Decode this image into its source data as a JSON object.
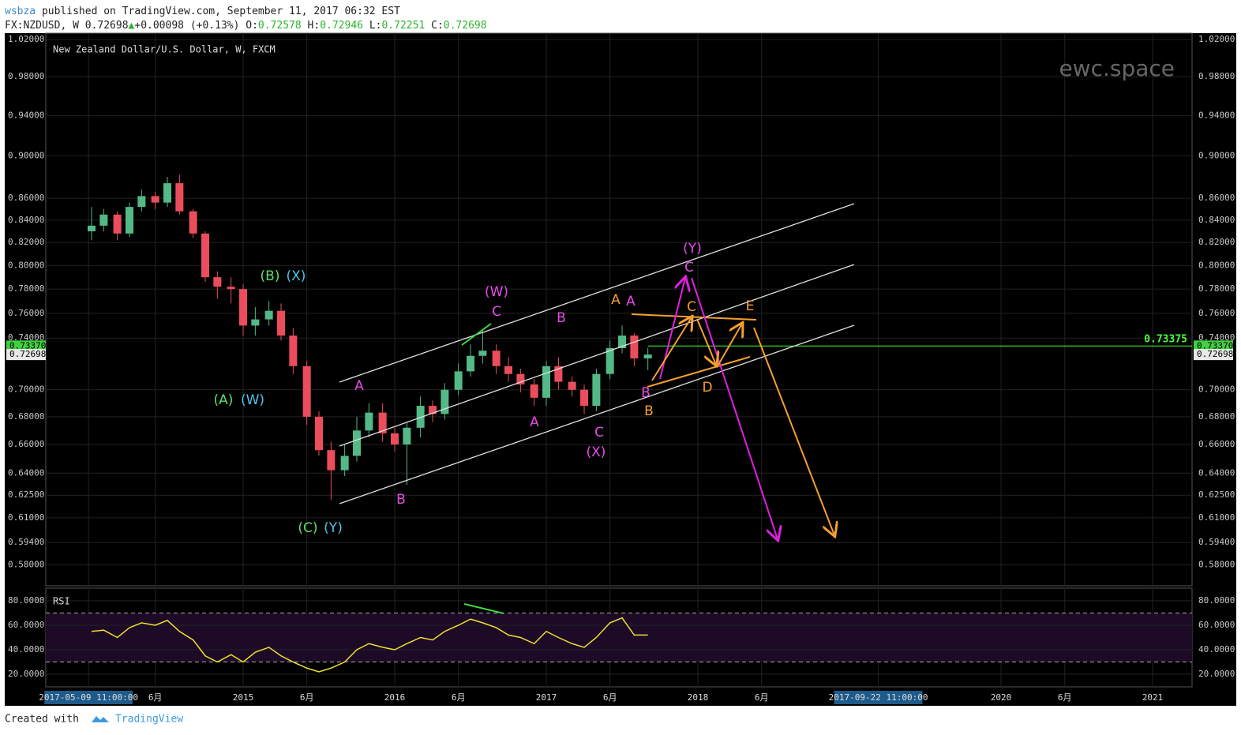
{
  "header": {
    "author": "wsbza",
    "published": "published on TradingView.com, September 11, 2017 06:32 EST",
    "symbol": "FX:NZDUSD, W",
    "last": "0.72698",
    "change": "+0.00098 (+0.13%)",
    "open_label": "O:",
    "open": "0.72578",
    "high_label": "H:",
    "high": "0.72946",
    "low_label": "L:",
    "low": "0.72251",
    "close_label": "C:",
    "close": "0.72698"
  },
  "chart_data": [
    {
      "type": "candlestick",
      "title": "New Zealand Dollar/U.S. Dollar, W, FXCM",
      "watermark": "ewc.space",
      "x": [
        2014.0,
        2014.08,
        2014.17,
        2014.25,
        2014.33,
        2014.42,
        2014.5,
        2014.58,
        2014.67,
        2014.75,
        2014.83,
        2014.92,
        2015.0,
        2015.08,
        2015.17,
        2015.25,
        2015.33,
        2015.42,
        2015.5,
        2015.58,
        2015.67,
        2015.75,
        2015.83,
        2015.92,
        2016.0,
        2016.08,
        2016.17,
        2016.25,
        2016.33,
        2016.42,
        2016.5,
        2016.58,
        2016.67,
        2016.75,
        2016.83,
        2016.92,
        2017.0,
        2017.08,
        2017.17,
        2017.25,
        2017.33,
        2017.42,
        2017.5,
        2017.58,
        2017.67
      ],
      "open": [
        0.83,
        0.835,
        0.845,
        0.828,
        0.852,
        0.862,
        0.856,
        0.874,
        0.848,
        0.828,
        0.79,
        0.782,
        0.78,
        0.75,
        0.755,
        0.762,
        0.742,
        0.718,
        0.68,
        0.656,
        0.642,
        0.652,
        0.67,
        0.683,
        0.668,
        0.66,
        0.672,
        0.688,
        0.682,
        0.7,
        0.714,
        0.726,
        0.73,
        0.718,
        0.712,
        0.704,
        0.694,
        0.718,
        0.706,
        0.7,
        0.688,
        0.712,
        0.732,
        0.742,
        0.724
      ],
      "high": [
        0.852,
        0.85,
        0.848,
        0.856,
        0.868,
        0.866,
        0.88,
        0.882,
        0.85,
        0.83,
        0.795,
        0.79,
        0.784,
        0.765,
        0.77,
        0.768,
        0.748,
        0.722,
        0.684,
        0.662,
        0.66,
        0.68,
        0.69,
        0.69,
        0.672,
        0.676,
        0.695,
        0.692,
        0.705,
        0.72,
        0.735,
        0.746,
        0.735,
        0.725,
        0.716,
        0.708,
        0.722,
        0.725,
        0.71,
        0.704,
        0.716,
        0.738,
        0.75,
        0.744,
        0.732
      ],
      "low": [
        0.822,
        0.83,
        0.822,
        0.825,
        0.848,
        0.85,
        0.852,
        0.845,
        0.824,
        0.786,
        0.772,
        0.768,
        0.742,
        0.742,
        0.75,
        0.738,
        0.712,
        0.674,
        0.652,
        0.622,
        0.638,
        0.648,
        0.665,
        0.662,
        0.655,
        0.632,
        0.665,
        0.676,
        0.678,
        0.696,
        0.71,
        0.72,
        0.712,
        0.706,
        0.698,
        0.688,
        0.688,
        0.7,
        0.695,
        0.682,
        0.684,
        0.708,
        0.728,
        0.718,
        0.715
      ],
      "close": [
        0.835,
        0.845,
        0.828,
        0.852,
        0.862,
        0.856,
        0.874,
        0.848,
        0.828,
        0.79,
        0.782,
        0.78,
        0.75,
        0.755,
        0.762,
        0.742,
        0.718,
        0.68,
        0.656,
        0.642,
        0.652,
        0.67,
        0.683,
        0.668,
        0.66,
        0.672,
        0.688,
        0.682,
        0.7,
        0.714,
        0.726,
        0.73,
        0.718,
        0.712,
        0.704,
        0.694,
        0.718,
        0.706,
        0.7,
        0.688,
        0.712,
        0.732,
        0.742,
        0.724,
        0.727
      ],
      "up_color": "#53b987",
      "down_color": "#eb4d5c",
      "log_scale": true,
      "grid": true,
      "ylim": [
        0.567,
        1.027
      ],
      "yticks": [
        {
          "value": 1.02,
          "label": "1.02000"
        },
        {
          "value": 0.98,
          "label": "0.98000"
        },
        {
          "value": 0.94,
          "label": "0.94000"
        },
        {
          "value": 0.9,
          "label": "0.90000"
        },
        {
          "value": 0.86,
          "label": "0.86000"
        },
        {
          "value": 0.84,
          "label": "0.84000"
        },
        {
          "value": 0.82,
          "label": "0.82000"
        },
        {
          "value": 0.8,
          "label": "0.80000"
        },
        {
          "value": 0.78,
          "label": "0.78000"
        },
        {
          "value": 0.76,
          "label": "0.76000"
        },
        {
          "value": 0.74,
          "label": "0.74000"
        },
        {
          "value": 0.7,
          "label": "0.70000"
        },
        {
          "value": 0.68,
          "label": "0.68000"
        },
        {
          "value": 0.66,
          "label": "0.66000"
        },
        {
          "value": 0.64,
          "label": "0.64000"
        },
        {
          "value": 0.625,
          "label": "0.62500"
        },
        {
          "value": 0.61,
          "label": "0.61000"
        },
        {
          "value": 0.594,
          "label": "0.59400"
        },
        {
          "value": 0.58,
          "label": "0.58000"
        }
      ],
      "xlim": [
        2013.698,
        2021.26
      ],
      "xticks": [
        {
          "value": 2013.98,
          "label": "2017-05-09 11:00:00",
          "boxed": true
        },
        {
          "value": 2014.42,
          "label": "6月"
        },
        2015,
        {
          "value": 2015.42,
          "label": "6月"
        },
        2016,
        {
          "value": 2016.42,
          "label": "6月"
        },
        2017,
        {
          "value": 2017.42,
          "label": "6月"
        },
        2018,
        {
          "value": 2018.42,
          "label": "6月"
        },
        {
          "value": 2019.19,
          "label": "2017-09-22 11:00:00",
          "boxed": true
        },
        2020,
        {
          "value": 2020.42,
          "label": "6月"
        },
        2021
      ],
      "price_labels": [
        {
          "value": 0.7337,
          "label": "0.73370",
          "color": "#3fd23f"
        },
        {
          "value": 0.72698,
          "label": "0.72698",
          "color": "#e8e8e8"
        }
      ],
      "level": {
        "value": 0.73375,
        "label": "0.73375",
        "color": "#4cff3c"
      },
      "annotations": [
        {
          "text": "(B)",
          "color": "#5ee06a"
        },
        {
          "text": "(X)",
          "color": "#4fc3e8"
        },
        {
          "text": "(A)",
          "color": "#5ee06a"
        },
        {
          "text": "(W)",
          "color": "#4fc3e8"
        },
        {
          "text": "(C)",
          "color": "#5ee06a"
        },
        {
          "text": "(Y)",
          "color": "#4fc3e8"
        },
        {
          "text": "A",
          "color": "#e84ce8"
        },
        {
          "text": "B",
          "color": "#e84ce8"
        },
        {
          "text": "(W)",
          "color": "#e84ce8"
        },
        {
          "text": "C",
          "color": "#e84ce8"
        },
        {
          "text": "B",
          "color": "#e84ce8"
        },
        {
          "text": "A",
          "color": "#e84ce8"
        },
        {
          "text": "C",
          "color": "#e84ce8"
        },
        {
          "text": "(X)",
          "color": "#e84ce8"
        },
        {
          "text": "A",
          "color": "#f5a030"
        },
        {
          "text": "A",
          "color": "#e84ce8"
        },
        {
          "text": "(Y)",
          "color": "#e84ce8"
        },
        {
          "text": "C",
          "color": "#e84ce8"
        },
        {
          "text": "C",
          "color": "#f5a030"
        },
        {
          "text": "E",
          "color": "#f5a030"
        },
        {
          "text": "B",
          "color": "#e84ce8"
        },
        {
          "text": "B",
          "color": "#f5a030"
        },
        {
          "text": "D",
          "color": "#f5a030"
        }
      ]
    },
    {
      "type": "line",
      "title": "RSI",
      "color": "#f0e030",
      "x": [
        2014.0,
        2014.08,
        2014.17,
        2014.25,
        2014.33,
        2014.42,
        2014.5,
        2014.58,
        2014.67,
        2014.75,
        2014.83,
        2014.92,
        2015.0,
        2015.08,
        2015.17,
        2015.25,
        2015.33,
        2015.42,
        2015.5,
        2015.58,
        2015.67,
        2015.75,
        2015.83,
        2015.92,
        2016.0,
        2016.08,
        2016.17,
        2016.25,
        2016.33,
        2016.42,
        2016.5,
        2016.58,
        2016.67,
        2016.75,
        2016.83,
        2016.92,
        2017.0,
        2017.08,
        2017.17,
        2017.25,
        2017.33,
        2017.42,
        2017.5,
        2017.58,
        2017.67
      ],
      "values": [
        55,
        56,
        50,
        58,
        62,
        60,
        64,
        55,
        48,
        35,
        30,
        36,
        30,
        38,
        42,
        35,
        30,
        25,
        22,
        25,
        30,
        40,
        45,
        42,
        40,
        45,
        50,
        48,
        55,
        60,
        65,
        62,
        58,
        52,
        50,
        45,
        55,
        50,
        45,
        42,
        50,
        62,
        66,
        52,
        52
      ],
      "ylim": [
        9.7,
        90.3
      ],
      "yticks": [
        {
          "value": 80,
          "label": "80.0000"
        },
        {
          "value": 60,
          "label": "60.0000"
        },
        {
          "value": 40,
          "label": "40.0000"
        },
        {
          "value": 20,
          "label": "20.0000"
        }
      ],
      "levels": [
        30,
        70
      ],
      "xlim": [
        2013.698,
        2021.26
      ],
      "grid": true
    }
  ],
  "footer": {
    "created": "Created with",
    "brand": "TradingView"
  }
}
